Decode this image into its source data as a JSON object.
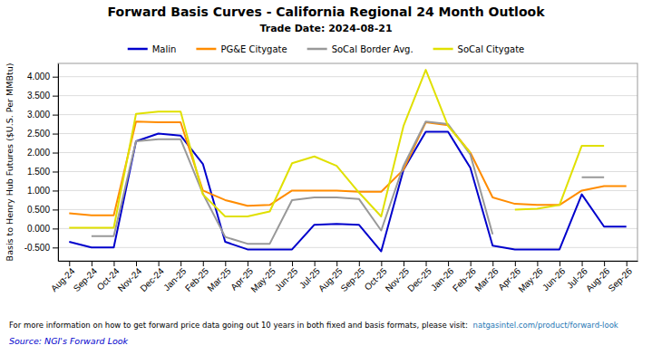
{
  "chart_data": {
    "type": "line",
    "title": "Forward Basis Curves - California Regional 24 Month Outlook",
    "subtitle": "Trade Date: 2024-08-21",
    "y_label": "Basis to Henry Hub Futures ($U.S. Per MMBtu)",
    "annotations": [
      "For more information on how to get forward price data going out 10 years in both fixed and basis formats, please visit: ",
      "natgasintel.com/product/forward-look",
      "Source: NGI's Forward Look"
    ],
    "categories": [
      "Aug-24",
      "Sep-24",
      "Oct-24",
      "Nov-24",
      "Dec-24",
      "Jan-25",
      "Feb-25",
      "Mar-25",
      "Apr-25",
      "May-25",
      "Jun-25",
      "Jul-25",
      "Aug-25",
      "Sep-25",
      "Oct-25",
      "Nov-25",
      "Dec-25",
      "Jan-26",
      "Feb-26",
      "Mar-26",
      "Apr-26",
      "May-26",
      "Jun-26",
      "Jul-26",
      "Aug-26",
      "Sep-26"
    ],
    "series": [
      {
        "name": "Malin",
        "color": "#0000cc",
        "values": [
          -0.35,
          -0.5,
          -0.5,
          2.3,
          2.5,
          2.45,
          1.7,
          -0.35,
          -0.55,
          -0.55,
          -0.55,
          0.1,
          0.12,
          0.1,
          -0.6,
          1.55,
          2.55,
          2.55,
          1.6,
          -0.45,
          -0.55,
          -0.55,
          -0.55,
          0.9,
          0.05,
          0.05
        ]
      },
      {
        "name": "PG&E Citygate",
        "color": "#ff8c00",
        "values": [
          0.4,
          0.35,
          0.35,
          2.82,
          2.8,
          2.8,
          1.0,
          0.75,
          0.6,
          0.62,
          1.0,
          1.0,
          1.0,
          0.97,
          0.97,
          1.55,
          2.8,
          2.72,
          2.0,
          0.82,
          0.65,
          0.62,
          0.62,
          1.0,
          1.12,
          1.12
        ]
      },
      {
        "name": "SoCal Border Avg.",
        "color": "#999999",
        "values": [
          null,
          -0.2,
          -0.2,
          2.3,
          2.35,
          2.35,
          0.92,
          -0.22,
          -0.4,
          -0.4,
          0.75,
          0.82,
          0.82,
          0.78,
          -0.05,
          1.65,
          2.82,
          2.75,
          1.95,
          -0.15,
          null,
          null,
          null,
          1.35,
          1.35,
          null
        ]
      },
      {
        "name": "SoCal Citygate",
        "color": "#e0e000",
        "values": [
          0.02,
          0.02,
          0.02,
          3.02,
          3.08,
          3.08,
          0.9,
          0.32,
          0.32,
          0.45,
          1.72,
          1.9,
          1.65,
          0.95,
          0.32,
          2.7,
          4.18,
          2.7,
          2.0,
          null,
          0.5,
          0.52,
          0.62,
          2.18,
          2.18,
          null
        ]
      }
    ],
    "ylim": [
      -0.85,
      4.35
    ],
    "yticks": [
      {
        "value": -0.5,
        "label": "-0.500"
      },
      {
        "value": 0,
        "label": "0.000"
      },
      {
        "value": 0.5,
        "label": "0.500"
      },
      {
        "value": 1,
        "label": "1.000"
      },
      {
        "value": 1.5,
        "label": "1.500"
      },
      {
        "value": 2,
        "label": "2.000"
      },
      {
        "value": 2.5,
        "label": "2.500"
      },
      {
        "value": 3,
        "label": "3.000"
      },
      {
        "value": 3.5,
        "label": "3.500"
      },
      {
        "value": 4,
        "label": "4.000"
      }
    ],
    "grid": true,
    "legend": "top"
  }
}
